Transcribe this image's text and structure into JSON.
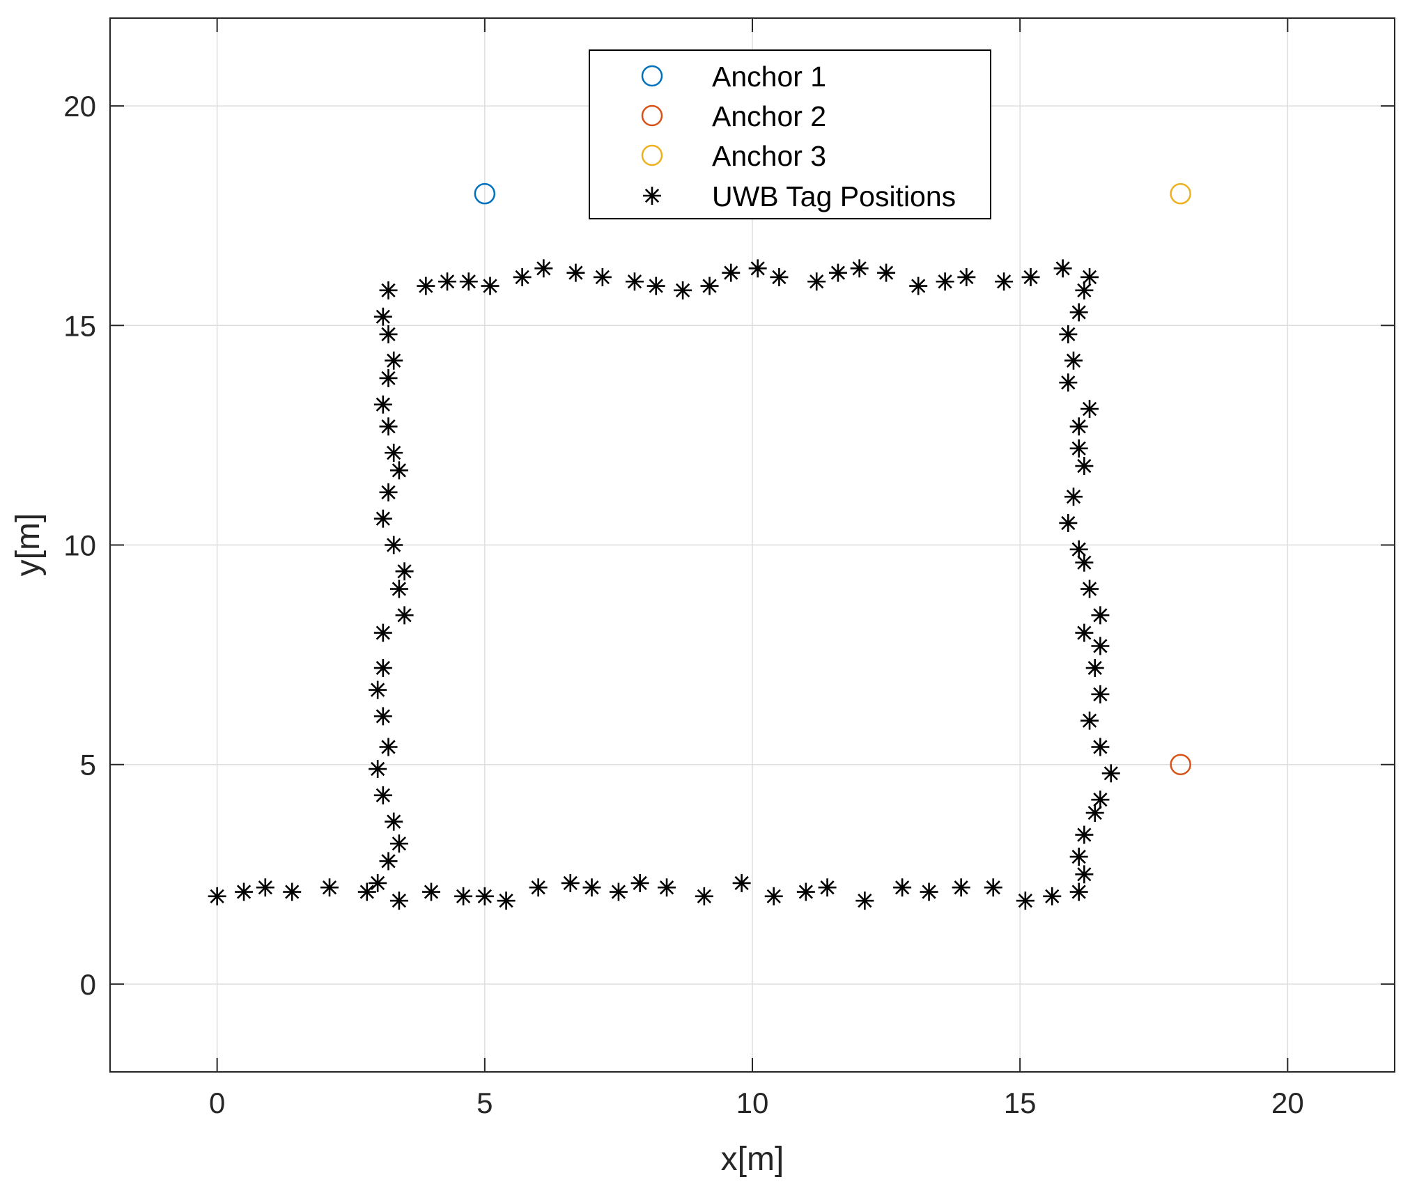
{
  "chart_data": {
    "type": "scatter",
    "title": "",
    "xlabel": "x[m]",
    "ylabel": "y[m]",
    "xlim": [
      -2,
      22
    ],
    "ylim": [
      -2,
      22
    ],
    "xticks": [
      0,
      5,
      10,
      15,
      20
    ],
    "yticks": [
      0,
      5,
      10,
      15,
      20
    ],
    "xtick_labels": [
      "0",
      "5",
      "10",
      "15",
      "20"
    ],
    "ytick_labels": [
      "0",
      "5",
      "10",
      "15",
      "20"
    ],
    "grid": true,
    "legend_position": "top-center",
    "series": [
      {
        "name": "Anchor 1",
        "marker": "circle",
        "color": "#0072BD",
        "points": [
          [
            5,
            18
          ]
        ]
      },
      {
        "name": "Anchor 2",
        "marker": "circle",
        "color": "#D95319",
        "points": [
          [
            18,
            5
          ]
        ]
      },
      {
        "name": "Anchor 3",
        "marker": "circle",
        "color": "#EDB120",
        "points": [
          [
            18,
            18
          ]
        ]
      },
      {
        "name": "UWB Tag Positions",
        "marker": "asterisk",
        "color": "#000000",
        "points": [
          [
            0,
            2
          ],
          [
            0.5,
            2.1
          ],
          [
            0.9,
            2.2
          ],
          [
            1.4,
            2.1
          ],
          [
            2.1,
            2.2
          ],
          [
            2.8,
            2.1
          ],
          [
            3.0,
            2.3
          ],
          [
            3.4,
            1.9
          ],
          [
            4.0,
            2.1
          ],
          [
            4.6,
            2.0
          ],
          [
            5.0,
            2.0
          ],
          [
            5.4,
            1.9
          ],
          [
            6.0,
            2.2
          ],
          [
            6.6,
            2.3
          ],
          [
            7.0,
            2.2
          ],
          [
            7.5,
            2.1
          ],
          [
            7.9,
            2.3
          ],
          [
            8.4,
            2.2
          ],
          [
            9.1,
            2.0
          ],
          [
            9.8,
            2.3
          ],
          [
            10.4,
            2.0
          ],
          [
            11.0,
            2.1
          ],
          [
            11.4,
            2.2
          ],
          [
            12.1,
            1.9
          ],
          [
            12.8,
            2.2
          ],
          [
            13.3,
            2.1
          ],
          [
            13.9,
            2.2
          ],
          [
            14.5,
            2.2
          ],
          [
            15.1,
            1.9
          ],
          [
            15.6,
            2.0
          ],
          [
            16.1,
            2.1
          ],
          [
            16.2,
            2.5
          ],
          [
            16.1,
            2.9
          ],
          [
            16.2,
            3.4
          ],
          [
            16.4,
            3.9
          ],
          [
            16.5,
            4.2
          ],
          [
            16.7,
            4.8
          ],
          [
            16.5,
            5.4
          ],
          [
            16.3,
            6.0
          ],
          [
            16.5,
            6.6
          ],
          [
            16.4,
            7.2
          ],
          [
            16.5,
            7.7
          ],
          [
            16.2,
            8.0
          ],
          [
            16.5,
            8.4
          ],
          [
            16.3,
            9.0
          ],
          [
            16.2,
            9.6
          ],
          [
            16.1,
            9.9
          ],
          [
            15.9,
            10.5
          ],
          [
            16.0,
            11.1
          ],
          [
            16.2,
            11.8
          ],
          [
            16.1,
            12.2
          ],
          [
            16.1,
            12.7
          ],
          [
            16.3,
            13.1
          ],
          [
            15.9,
            13.7
          ],
          [
            16.0,
            14.2
          ],
          [
            15.9,
            14.8
          ],
          [
            16.1,
            15.3
          ],
          [
            16.2,
            15.8
          ],
          [
            16.3,
            16.1
          ],
          [
            15.8,
            16.3
          ],
          [
            15.2,
            16.1
          ],
          [
            14.7,
            16.0
          ],
          [
            14.0,
            16.1
          ],
          [
            13.6,
            16.0
          ],
          [
            13.1,
            15.9
          ],
          [
            12.5,
            16.2
          ],
          [
            12.0,
            16.3
          ],
          [
            11.6,
            16.2
          ],
          [
            11.2,
            16.0
          ],
          [
            10.5,
            16.1
          ],
          [
            10.1,
            16.3
          ],
          [
            9.6,
            16.2
          ],
          [
            9.2,
            15.9
          ],
          [
            8.7,
            15.8
          ],
          [
            8.2,
            15.9
          ],
          [
            7.8,
            16.0
          ],
          [
            7.2,
            16.1
          ],
          [
            6.7,
            16.2
          ],
          [
            6.1,
            16.3
          ],
          [
            5.7,
            16.1
          ],
          [
            5.1,
            15.9
          ],
          [
            4.7,
            16.0
          ],
          [
            4.3,
            16.0
          ],
          [
            3.9,
            15.9
          ],
          [
            3.2,
            15.8
          ],
          [
            3.1,
            15.2
          ],
          [
            3.2,
            14.8
          ],
          [
            3.3,
            14.2
          ],
          [
            3.2,
            13.8
          ],
          [
            3.1,
            13.2
          ],
          [
            3.2,
            12.7
          ],
          [
            3.3,
            12.1
          ],
          [
            3.4,
            11.7
          ],
          [
            3.2,
            11.2
          ],
          [
            3.1,
            10.6
          ],
          [
            3.3,
            10.0
          ],
          [
            3.5,
            9.4
          ],
          [
            3.4,
            9.0
          ],
          [
            3.5,
            8.4
          ],
          [
            3.1,
            8.0
          ],
          [
            3.1,
            7.2
          ],
          [
            3.0,
            6.7
          ],
          [
            3.1,
            6.1
          ],
          [
            3.2,
            5.4
          ],
          [
            3.0,
            4.9
          ],
          [
            3.1,
            4.3
          ],
          [
            3.3,
            3.7
          ],
          [
            3.4,
            3.2
          ],
          [
            3.2,
            2.8
          ]
        ]
      }
    ]
  }
}
